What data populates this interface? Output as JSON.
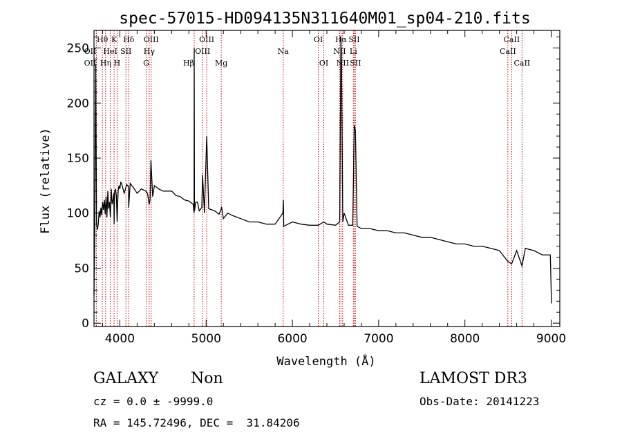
{
  "chart_data": {
    "type": "line",
    "title": "spec-57015-HD094135N311640M01_sp04-210.fits",
    "xlabel": "Wavelength (Å)",
    "ylabel": "Flux (relative)",
    "xlim": [
      3700,
      9100
    ],
    "ylim": [
      -3,
      266
    ],
    "xticks": [
      4000,
      5000,
      6000,
      7000,
      8000,
      9000
    ],
    "yticks": [
      0,
      50,
      100,
      150,
      200,
      250
    ],
    "grid": false,
    "series": [
      {
        "x": [
          3700,
          3710,
          3720,
          3730,
          3740,
          3750,
          3760,
          3770,
          3780,
          3790,
          3800,
          3810,
          3820,
          3830,
          3840,
          3850,
          3860,
          3870,
          3880,
          3890,
          3900,
          3910,
          3920,
          3930,
          3933,
          3940,
          3950,
          3960,
          3968,
          3980,
          3990,
          4000,
          4010,
          4020,
          4050,
          4080,
          4100,
          4102,
          4120,
          4150,
          4200,
          4250,
          4300,
          4320,
          4340,
          4350,
          4360,
          4380,
          4400,
          4450,
          4500,
          4550,
          4600,
          4650,
          4700,
          4750,
          4800,
          4850,
          4860,
          4862,
          4865,
          4880,
          4900,
          4920,
          4950,
          4959,
          4980,
          5007,
          5030,
          5100,
          5150,
          5180,
          5200,
          5250,
          5300,
          5400,
          5500,
          5600,
          5700,
          5800,
          5890,
          5895,
          5900,
          5950,
          6000,
          6100,
          6200,
          6300,
          6364,
          6400,
          6500,
          6548,
          6560,
          6563,
          6570,
          6584,
          6600,
          6650,
          6700,
          6717,
          6731,
          6750,
          6800,
          6900,
          7000,
          7100,
          7200,
          7300,
          7400,
          7500,
          7600,
          7700,
          7800,
          7900,
          8000,
          8100,
          8200,
          8300,
          8400,
          8498,
          8542,
          8600,
          8662,
          8700,
          8800,
          8900,
          8950,
          8990,
          9000,
          9005
        ],
        "y": [
          25,
          95,
          235,
          90,
          85,
          90,
          102,
          96,
          105,
          98,
          110,
          103,
          112,
          99,
          115,
          96,
          120,
          104,
          110,
          96,
          122,
          108,
          112,
          118,
          90,
          120,
          122,
          115,
          92,
          120,
          125,
          122,
          128,
          127,
          118,
          126,
          124,
          105,
          127,
          124,
          118,
          122,
          120,
          118,
          108,
          112,
          148,
          115,
          125,
          122,
          120,
          120,
          120,
          116,
          115,
          112,
          111,
          108,
          100,
          250,
          102,
          110,
          110,
          102,
          105,
          135,
          100,
          170,
          104,
          102,
          99,
          105,
          95,
          100,
          98,
          95,
          92,
          92,
          90,
          90,
          100,
          112,
          88,
          90,
          92,
          90,
          89,
          89,
          92,
          90,
          89,
          92,
          235,
          260,
          235,
          92,
          100,
          89,
          89,
          180,
          175,
          88,
          86,
          86,
          84,
          84,
          82,
          82,
          80,
          78,
          78,
          76,
          74,
          72,
          72,
          70,
          70,
          68,
          66,
          56,
          54,
          66,
          52,
          68,
          66,
          62,
          62,
          62,
          30,
          18
        ]
      }
    ],
    "lines": [
      {
        "name": "OII",
        "x": 3727,
        "row": 2,
        "anchor": "end"
      },
      {
        "name": "OII",
        "x": 3727,
        "row": 3,
        "anchor": "end"
      },
      {
        "name": "Hθ",
        "x": 3797,
        "row": 1,
        "anchor": "middle"
      },
      {
        "name": "Hη",
        "x": 3835,
        "row": 3,
        "anchor": "middle"
      },
      {
        "name": "HeI",
        "x": 3889,
        "row": 2,
        "anchor": "middle"
      },
      {
        "name": "K",
        "x": 3933,
        "row": 1,
        "anchor": "middle"
      },
      {
        "name": "H",
        "x": 3968,
        "row": 3,
        "anchor": "middle"
      },
      {
        "name": "SII",
        "x": 4070,
        "row": 2,
        "anchor": "middle"
      },
      {
        "name": "Hδ",
        "x": 4102,
        "row": 1,
        "anchor": "middle"
      },
      {
        "name": "G",
        "x": 4305,
        "row": 3,
        "anchor": "middle"
      },
      {
        "name": "Hγ",
        "x": 4340,
        "row": 2,
        "anchor": "middle"
      },
      {
        "name": "OIII",
        "x": 4363,
        "row": 1,
        "anchor": "middle"
      },
      {
        "name": "Hβ",
        "x": 4861,
        "row": 3,
        "anchor": "end"
      },
      {
        "name": "OIII",
        "x": 4959,
        "row": 2,
        "anchor": "middle"
      },
      {
        "name": "OIII",
        "x": 5007,
        "row": 1,
        "anchor": "middle"
      },
      {
        "name": "Mg",
        "x": 5175,
        "row": 3,
        "anchor": "middle"
      },
      {
        "name": "Na",
        "x": 5893,
        "row": 2,
        "anchor": "middle"
      },
      {
        "name": "OI",
        "x": 6300,
        "row": 1,
        "anchor": "middle"
      },
      {
        "name": "OI",
        "x": 6364,
        "row": 3,
        "anchor": "middle"
      },
      {
        "name": "NII",
        "x": 6548,
        "row": 2,
        "anchor": "middle"
      },
      {
        "name": "Hα",
        "x": 6563,
        "row": 1,
        "anchor": "middle"
      },
      {
        "name": "NII",
        "x": 6583,
        "row": 3,
        "anchor": "middle"
      },
      {
        "name": "Li",
        "x": 6707,
        "row": 2,
        "anchor": "middle"
      },
      {
        "name": "SII",
        "x": 6716,
        "row": 1,
        "anchor": "middle"
      },
      {
        "name": "SII",
        "x": 6731,
        "row": 3,
        "anchor": "middle"
      },
      {
        "name": "CaII",
        "x": 8498,
        "row": 2,
        "anchor": "middle"
      },
      {
        "name": "CaII",
        "x": 8542,
        "row": 1,
        "anchor": "middle"
      },
      {
        "name": "CaII",
        "x": 8662,
        "row": 3,
        "anchor": "middle"
      }
    ]
  },
  "footer": {
    "object_class": "GALAXY",
    "subclass": "Non",
    "survey": "LAMOST DR3",
    "cz": "cz = 0.0 ± -9999.0",
    "obs_date": "Obs-Date: 20141223",
    "coords": "RA = 145.72496, DEC =  31.84206"
  },
  "colors": {
    "spectrum": "#000000",
    "line_markers": "#cc0000",
    "background": "#ffffff"
  }
}
